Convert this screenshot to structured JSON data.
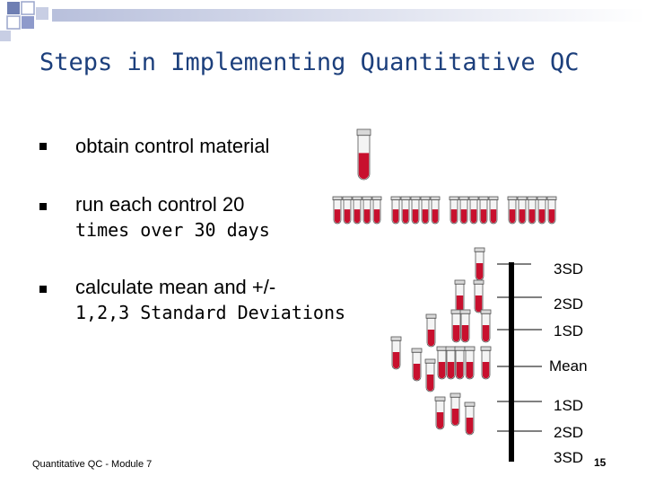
{
  "title": "Steps in Implementing Quantitative QC",
  "bullets": [
    {
      "line1": "obtain control  material",
      "line2": ""
    },
    {
      "line1": "run each control 20",
      "line2": "times over 30 days"
    },
    {
      "line1": "calculate mean and +/-",
      "line2": "1,2,3 Standard Deviations"
    }
  ],
  "sd_labels": {
    "plus3": "3SD",
    "plus2": "2SD",
    "plus1": "1SD",
    "mean": "Mean",
    "minus1": "1SD",
    "minus2": "2SD",
    "minus3": "3SD"
  },
  "footer": "Quantitative QC - Module 7",
  "page_number": "15",
  "colors": {
    "title": "#1c3f7c",
    "tube_fill": "#c8102e",
    "deco_square": "#6f7fb3"
  }
}
